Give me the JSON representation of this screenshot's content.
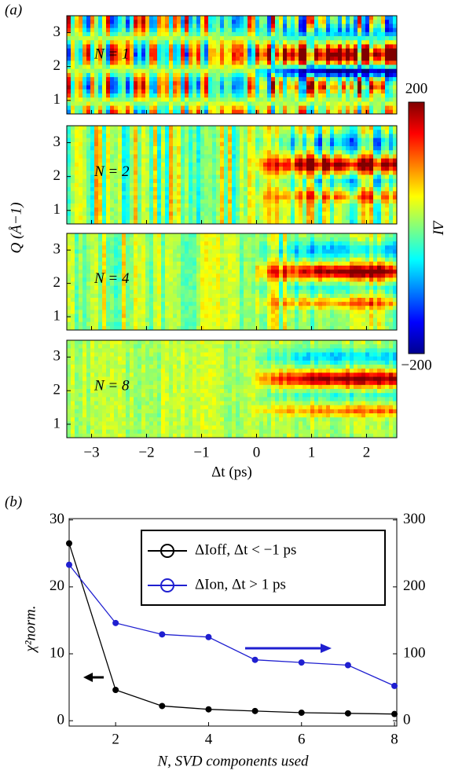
{
  "chart_data": [
    {
      "type": "heatmap",
      "panel_label": "(a)",
      "xlabel": "Δt (ps)",
      "ylabel": "Q (Å−1)",
      "xlim": [
        -3.45,
        2.55
      ],
      "xticks": [
        {
          "value": -3,
          "label": "−3"
        },
        {
          "value": -2,
          "label": "−2"
        },
        {
          "value": -1,
          "label": "−1"
        },
        0,
        1,
        2
      ],
      "ylim": [
        0.6,
        3.5
      ],
      "yticks": [
        1,
        2,
        3
      ],
      "panels": [
        {
          "label": "N = 1"
        },
        {
          "label": "N = 2"
        },
        {
          "label": "N = 4"
        },
        {
          "label": "N = 8"
        }
      ],
      "colorbar": {
        "label": "ΔI",
        "colormap": "jet",
        "clim": [
          -200,
          200
        ],
        "ticks": [
          200,
          {
            "value": -200,
            "label": "−200"
          }
        ]
      }
    },
    {
      "type": "line",
      "panel_label": "(b)",
      "xlabel": "N, SVD components used",
      "ylabel": "χ²norm.",
      "x": [
        1,
        2,
        3,
        4,
        5,
        6,
        7,
        8
      ],
      "xlim": [
        1,
        8.05
      ],
      "xticks": [
        2,
        4,
        6,
        8
      ],
      "ylim": [
        -0.8,
        30.2
      ],
      "yticks": [
        0,
        10,
        20,
        30
      ],
      "y2lim": [
        -8,
        302
      ],
      "y2ticks": [
        0,
        100,
        200,
        300
      ],
      "legend": "upper right",
      "series": [
        {
          "name": "ΔIoff, Δt < −1 ps",
          "color": "#000000",
          "values": [
            26.5,
            4.6,
            2.2,
            1.7,
            1.45,
            1.2,
            1.1,
            1.0
          ]
        },
        {
          "name": "ΔIon, Δt > 1 ps",
          "color": "#1f1fd0",
          "axis": "y2",
          "values": [
            233,
            146,
            129,
            125,
            91,
            87,
            83,
            52
          ]
        }
      ]
    }
  ]
}
